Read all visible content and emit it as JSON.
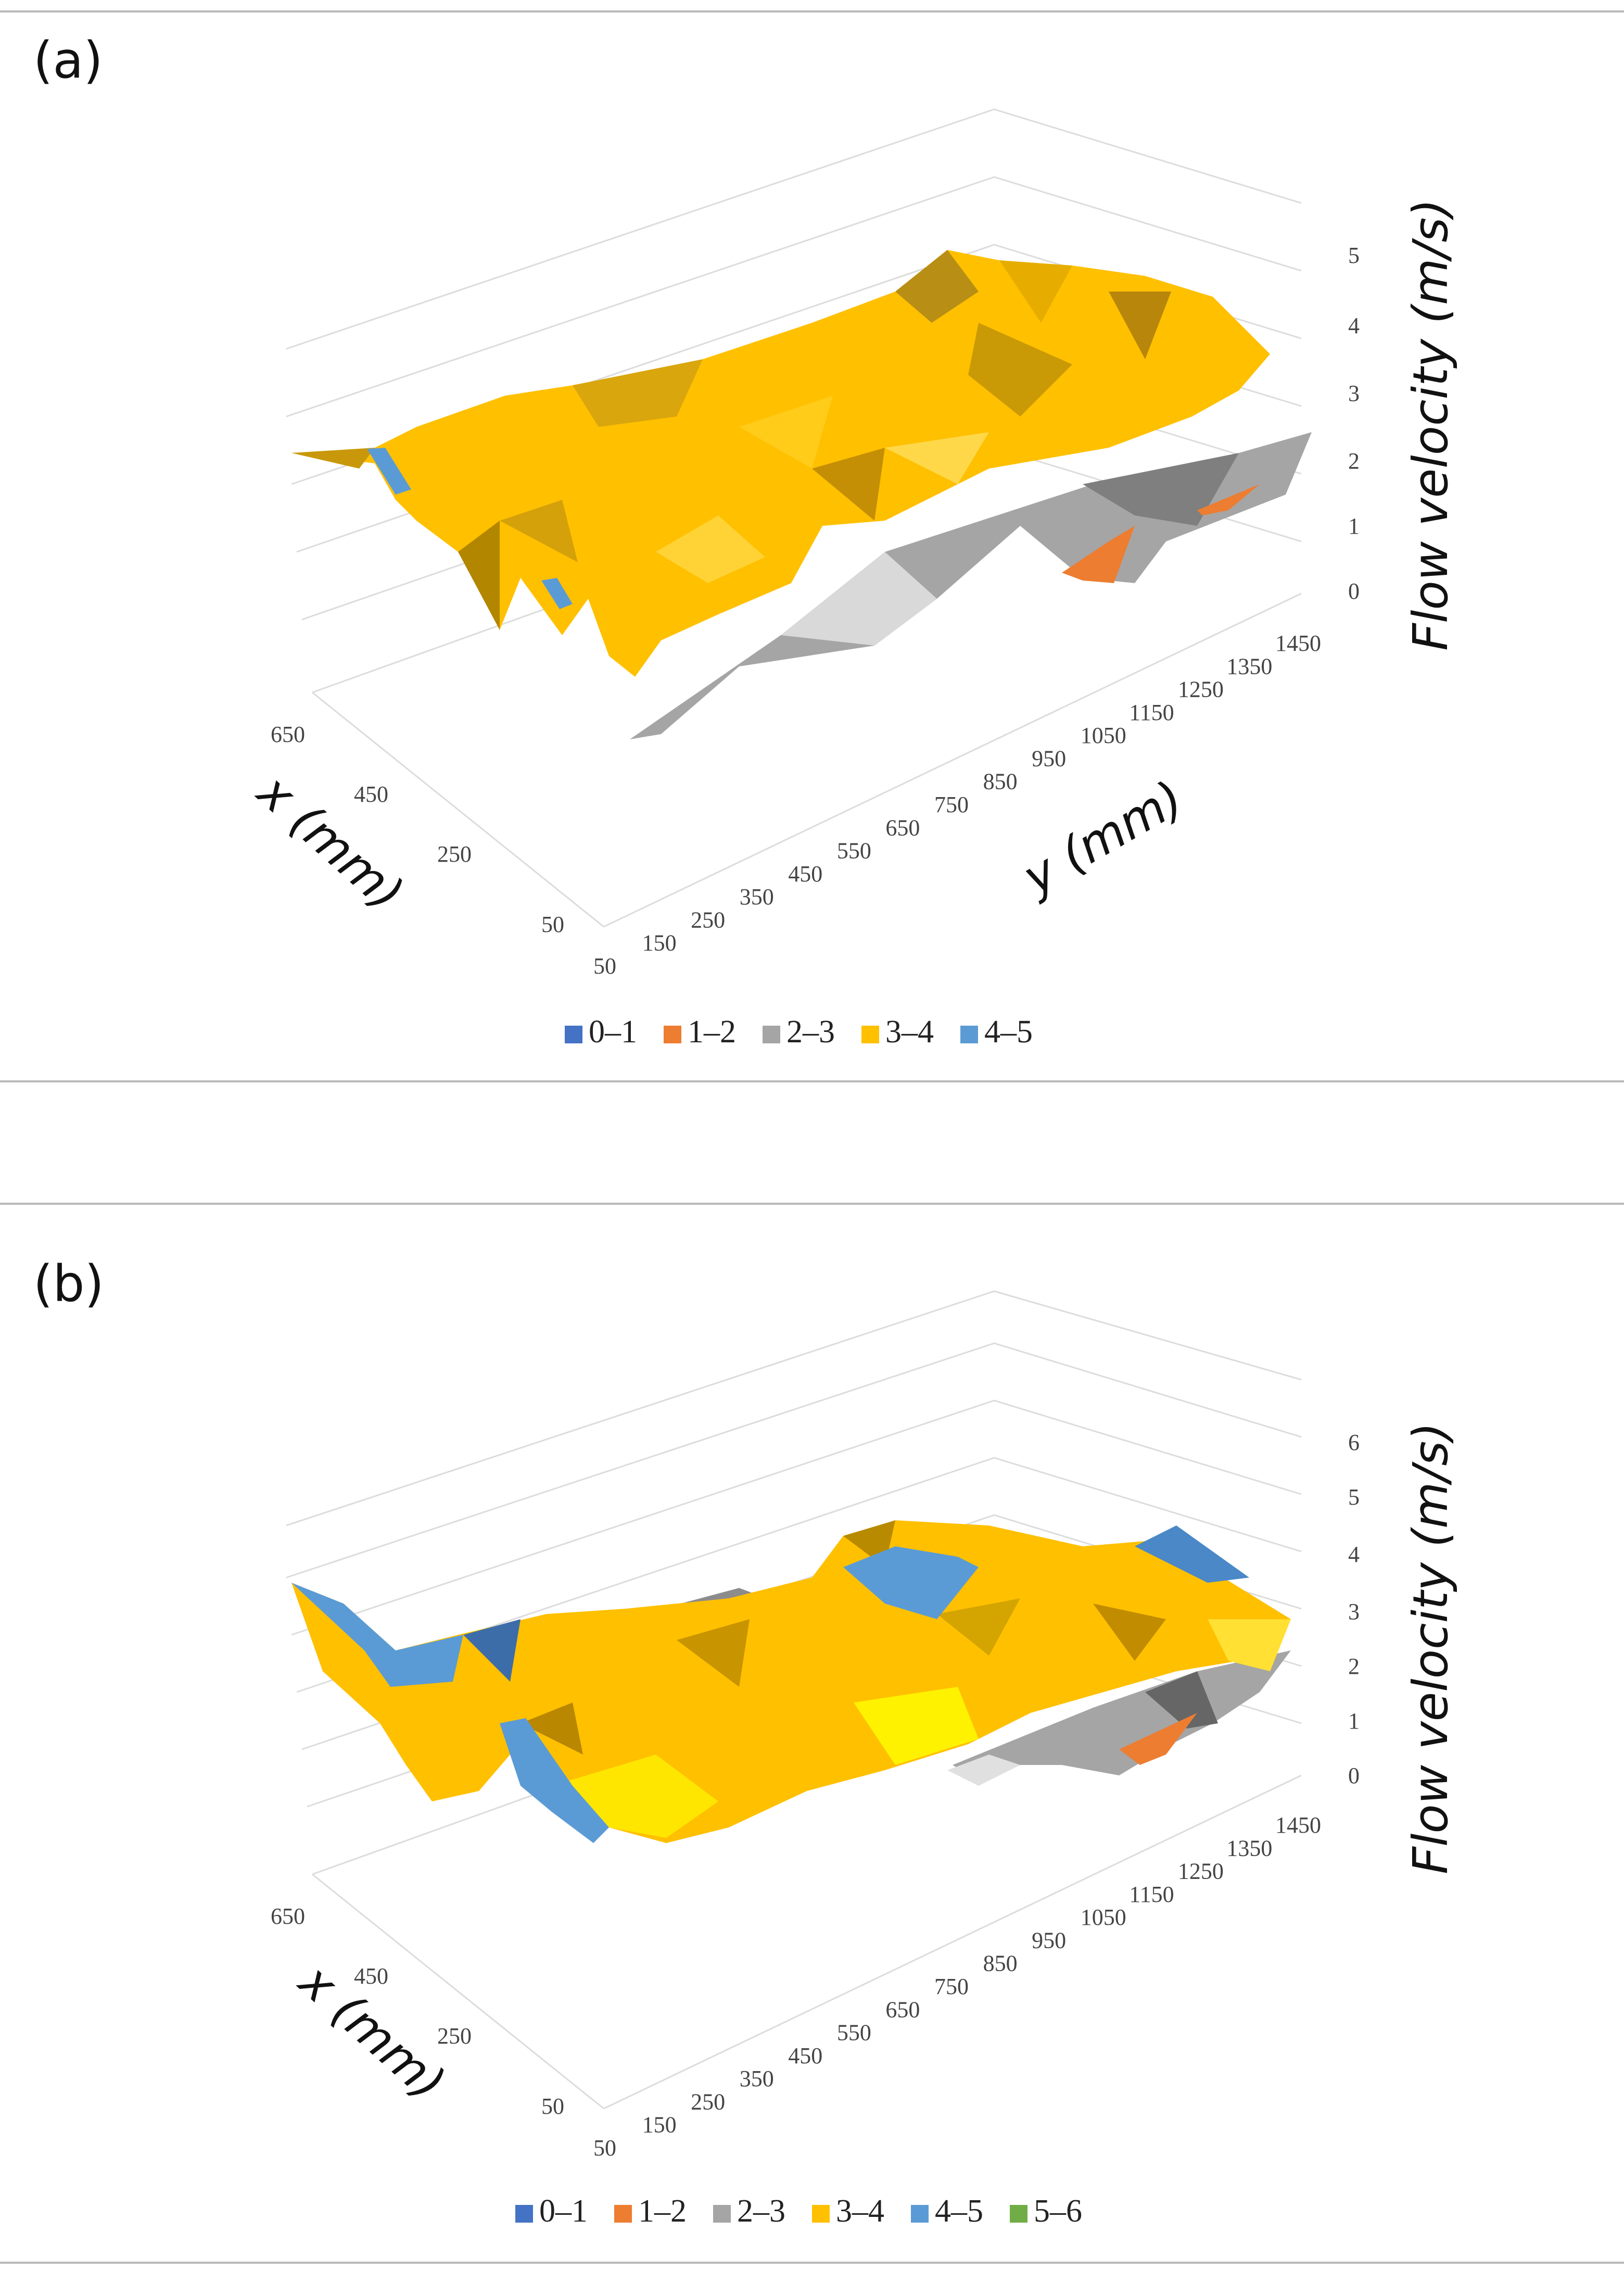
{
  "chart_data": [
    {
      "panel_label": "(a)",
      "type": "surface",
      "zlabel": "Flow velocity (m/s)",
      "xlabel": "x (mm)",
      "ylabel": "y (mm)",
      "x_ticks": [
        "650",
        "450",
        "250",
        "50"
      ],
      "y_ticks": [
        "50",
        "150",
        "250",
        "350",
        "450",
        "550",
        "650",
        "750",
        "850",
        "950",
        "1050",
        "1150",
        "1250",
        "1350",
        "1450"
      ],
      "z_ticks": [
        "0",
        "1",
        "2",
        "3",
        "4",
        "5"
      ],
      "zlim": [
        0,
        5
      ],
      "bands": [
        {
          "label": "0–1",
          "color": "#4472c4"
        },
        {
          "label": "1–2",
          "color": "#ed7d31"
        },
        {
          "label": "2–3",
          "color": "#a5a5a5"
        },
        {
          "label": "3–4",
          "color": "#ffc000"
        },
        {
          "label": "4–5",
          "color": "#5b9bd5"
        }
      ]
    },
    {
      "panel_label": "(b)",
      "type": "surface",
      "zlabel": "Flow velocity (m/s)",
      "xlabel": "x (mm)",
      "ylabel": "",
      "x_ticks": [
        "650",
        "450",
        "250",
        "50"
      ],
      "y_ticks": [
        "50",
        "150",
        "250",
        "350",
        "450",
        "550",
        "650",
        "750",
        "850",
        "950",
        "1050",
        "1150",
        "1250",
        "1350",
        "1450"
      ],
      "z_ticks": [
        "0",
        "1",
        "2",
        "3",
        "4",
        "5",
        "6"
      ],
      "zlim": [
        0,
        6
      ],
      "bands": [
        {
          "label": "0–1",
          "color": "#4472c4"
        },
        {
          "label": "1–2",
          "color": "#ed7d31"
        },
        {
          "label": "2–3",
          "color": "#a5a5a5"
        },
        {
          "label": "3–4",
          "color": "#ffc000"
        },
        {
          "label": "4–5",
          "color": "#5b9bd5"
        },
        {
          "label": "5–6",
          "color": "#70ad47"
        }
      ]
    }
  ]
}
